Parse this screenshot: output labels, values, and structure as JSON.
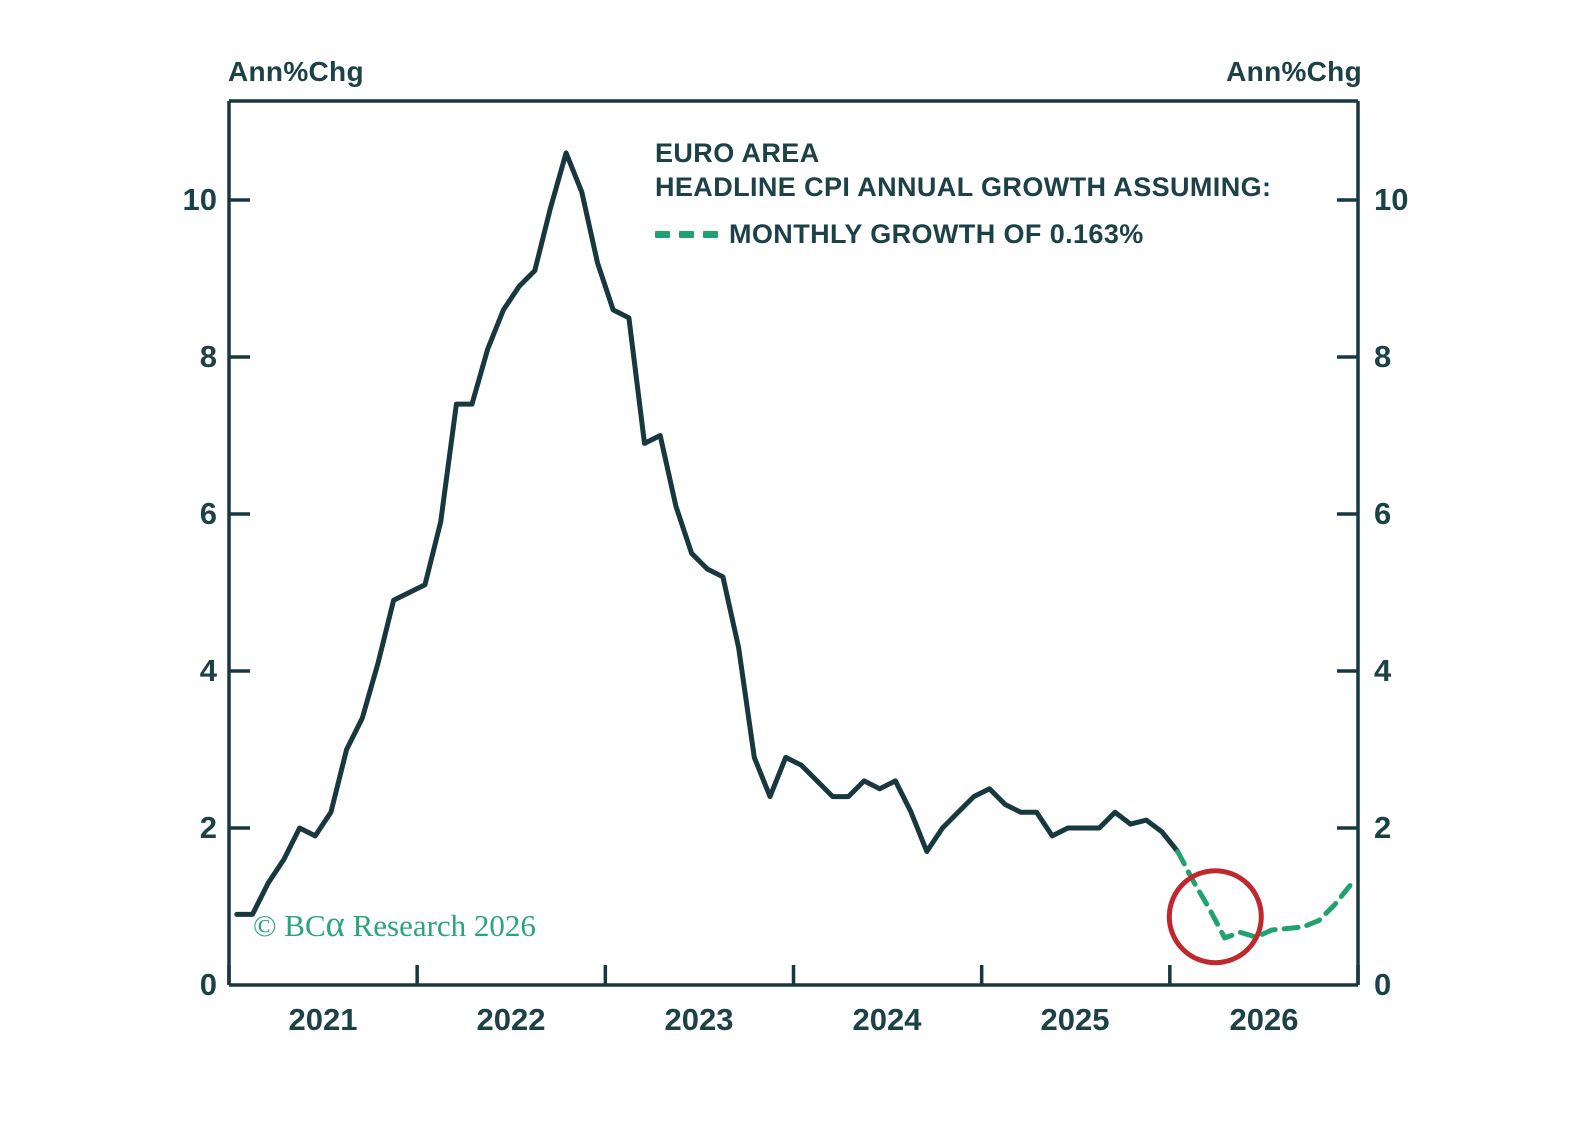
{
  "page": {
    "background": "#ffffff"
  },
  "chart_data": {
    "type": "line",
    "title_lines": [
      "EURO AREA",
      "HEADLINE CPI ANNUAL GROWTH ASSUMING:"
    ],
    "legend": {
      "label": "MONTHLY GROWTH OF 0.163%",
      "style": "dashed",
      "color": "#1fa26d",
      "position": "top-center"
    },
    "ylabel_left": "Ann%Chg",
    "ylabel_right": "Ann%Chg",
    "ylim": [
      0,
      11.3
    ],
    "grid": "off",
    "yticks": [
      0,
      2,
      4,
      6,
      8,
      10
    ],
    "ytick_labels_desc": [
      "10",
      "8",
      "6",
      "4",
      "2",
      "0"
    ],
    "years": [
      "2021",
      "2022",
      "2023",
      "2024",
      "2025",
      "2026"
    ],
    "x_start": "2021-01",
    "x_end": "2026-12",
    "series": [
      {
        "name": "Euro area headline CPI annual growth (actual)",
        "style": "solid",
        "color": "#16383e",
        "start_index": 0,
        "start_month": "2021-01",
        "values": [
          0.9,
          0.9,
          1.3,
          1.6,
          2.0,
          1.9,
          2.2,
          3.0,
          3.4,
          4.1,
          4.9,
          5.0,
          5.1,
          5.9,
          7.4,
          7.4,
          8.1,
          8.6,
          8.9,
          9.1,
          9.9,
          10.6,
          10.1,
          9.2,
          8.6,
          8.5,
          6.9,
          7.0,
          6.1,
          5.5,
          5.3,
          5.2,
          4.3,
          2.9,
          2.4,
          2.9,
          2.8,
          2.6,
          2.4,
          2.4,
          2.6,
          2.5,
          2.6,
          2.2,
          1.7,
          2.0,
          2.2,
          2.4,
          2.5,
          2.3,
          2.2,
          2.2,
          1.9,
          2.0,
          2.0,
          2.0,
          2.2,
          2.05,
          2.1,
          1.95,
          1.7
        ]
      },
      {
        "name": "Projection assuming monthly growth of 0.163%",
        "style": "dashed",
        "color": "#1fa26d",
        "start_index": 60,
        "start_month": "2026-01",
        "values": [
          1.7,
          1.32,
          0.98,
          0.6,
          0.67,
          0.61,
          0.7,
          0.72,
          0.74,
          0.82,
          1.02,
          1.27
        ]
      }
    ],
    "annotation_circle": {
      "month_index": 62.4,
      "value": 0.87,
      "radius_px": 46,
      "color": "#c0282f"
    }
  },
  "ylabels_left": {
    "0": "10",
    "1": "8",
    "2": "6",
    "3": "4",
    "4": "2",
    "5": "0"
  },
  "ylabels_right": {
    "0": "10",
    "1": "8",
    "2": "6",
    "3": "4",
    "4": "2",
    "5": "0"
  },
  "copyright": {
    "prefix": "© BC",
    "alpha": "α",
    "suffix": " Research 2026",
    "color": "#2aa47a"
  }
}
